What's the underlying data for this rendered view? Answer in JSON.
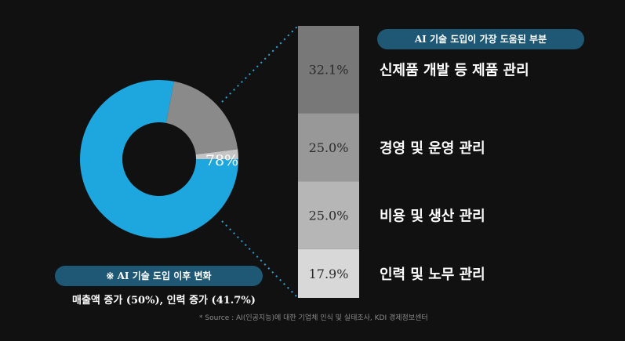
{
  "chart_data": [
    {
      "type": "pie",
      "subtype": "donut",
      "center_label": "78%",
      "slices": [
        {
          "label": "78%",
          "value": 78,
          "color": "#1ea7df"
        },
        {
          "value": 20,
          "color": "#8a8a8a"
        },
        {
          "value": 2,
          "color": "#c4c4c4"
        }
      ],
      "caption_title": "※ AI 기술 도입 이후 변화",
      "caption_text": "매출액 증가 (50%), 인력 증가 (41.7%)"
    },
    {
      "type": "bar",
      "subtype": "stacked-100",
      "title": "AI 기술 도입이 가장 도움된 부분",
      "categories": [
        "신제품 개발 등 제품 관리",
        "경영 및 운영 관리",
        "비용 및 생산 관리",
        "인력 및 노무 관리"
      ],
      "values": [
        32.1,
        25.0,
        25.0,
        17.9
      ],
      "value_labels": [
        "32.1%",
        "25.0%",
        "25.0%",
        "17.9%"
      ],
      "colors": [
        "#787878",
        "#989898",
        "#b6b6b6",
        "#d8d8d8"
      ]
    }
  ],
  "source": "* Source : AI(인공지능)에 대한 기업체 인식 및 실태조사, KDI 경제정보센터",
  "connector_color": "#2aa8d8"
}
